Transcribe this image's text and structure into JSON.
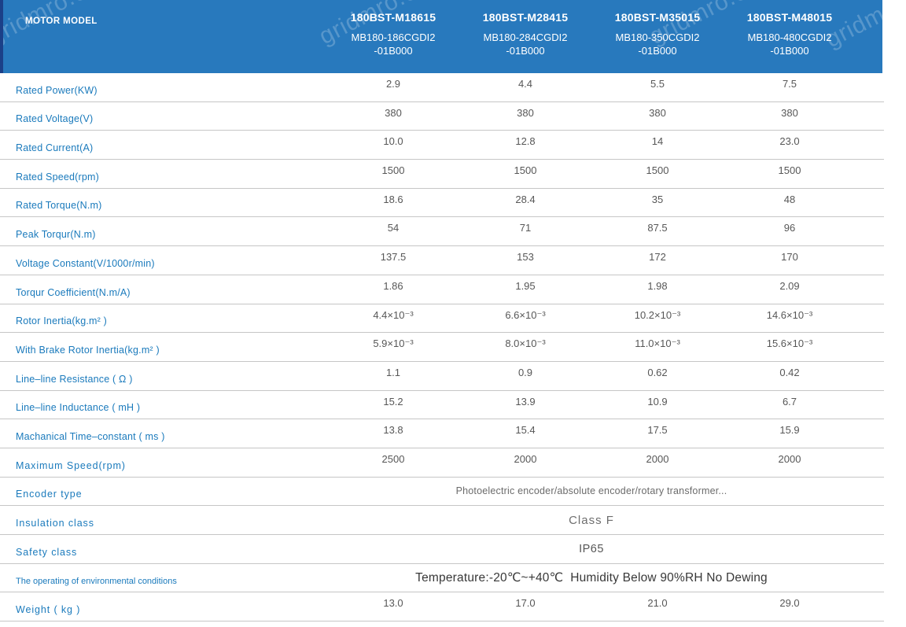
{
  "watermark": {
    "text": "gridmro.com"
  },
  "colors": {
    "header_background": "#2879bd",
    "header_left_edge": "#1b4088",
    "label_blue": "#1a7abc",
    "value_gray": "#575757",
    "separator_gray": "#c6c6c6"
  },
  "header": {
    "row_label": "MOTOR MODEL",
    "columns": [
      {
        "model": "180BST-M18615",
        "part_number": "MB180-186CGDI2\n-01B000"
      },
      {
        "model": "180BST-M28415",
        "part_number": "MB180-284CGDI2\n-01B000"
      },
      {
        "model": "180BST-M35015",
        "part_number": "MB180-350CGDI2\n-01B000"
      },
      {
        "model": "180BST-M48015",
        "part_number": "MB180-480CGDI2\n-01B000"
      }
    ]
  },
  "rows": [
    {
      "label": "Rated Power(KW)",
      "values": [
        "2.9",
        "4.4",
        "5.5",
        "7.5"
      ]
    },
    {
      "label": "Rated Voltage(V)",
      "values": [
        "380",
        "380",
        "380",
        "380"
      ]
    },
    {
      "label": "Rated Current(A)",
      "values": [
        "10.0",
        "12.8",
        "14",
        "23.0"
      ]
    },
    {
      "label": "Rated Speed(rpm)",
      "values": [
        "1500",
        "1500",
        "1500",
        "1500"
      ]
    },
    {
      "label": "Rated Torque(N.m)",
      "values": [
        "18.6",
        "28.4",
        "35",
        "48"
      ]
    },
    {
      "label": "Peak Torqur(N.m)",
      "values": [
        "54",
        "71",
        "87.5",
        "96"
      ]
    },
    {
      "label": "Voltage Constant(V/1000r/min)",
      "values": [
        "137.5",
        "153",
        "172",
        "170"
      ]
    },
    {
      "label": "Torqur Coefficient(N.m/A)",
      "values": [
        "1.86",
        "1.95",
        "1.98",
        "2.09"
      ]
    },
    {
      "label": "Rotor Inertia(kg.m² )",
      "values": [
        "4.4×10⁻³",
        "6.6×10⁻³",
        "10.2×10⁻³",
        "14.6×10⁻³"
      ]
    },
    {
      "label": "With Brake Rotor Inertia(kg.m² )",
      "values": [
        "5.9×10⁻³",
        "8.0×10⁻³",
        "11.0×10⁻³",
        "15.6×10⁻³"
      ]
    },
    {
      "label": "Line–line Resistance ( Ω )",
      "values": [
        "1.1",
        "0.9",
        "0.62",
        "0.42"
      ]
    },
    {
      "label": "Line–line Inductance ( mH )",
      "values": [
        "15.2",
        "13.9",
        "10.9",
        "6.7"
      ]
    },
    {
      "label": "Machanical Time–constant ( ms )",
      "values": [
        "13.8",
        "15.4",
        "17.5",
        "15.9"
      ]
    },
    {
      "label": "Maximum Speed(rpm)",
      "values": [
        "2500",
        "2000",
        "2000",
        "2000"
      ]
    },
    {
      "label": "Encoder type",
      "merged": "Photoelectric encoder/absolute encoder/rotary transformer..."
    },
    {
      "label": "Insulation class",
      "merged": "Class F"
    },
    {
      "label": "Safety class",
      "merged": "IP65"
    },
    {
      "label": "The operating of environmental conditions",
      "merged": "Temperature:-20℃~+40℃  Humidity Below 90%RH No Dewing"
    },
    {
      "label": "Weight ( kg )",
      "values": [
        "13.0",
        "17.0",
        "21.0",
        "29.0"
      ]
    }
  ]
}
